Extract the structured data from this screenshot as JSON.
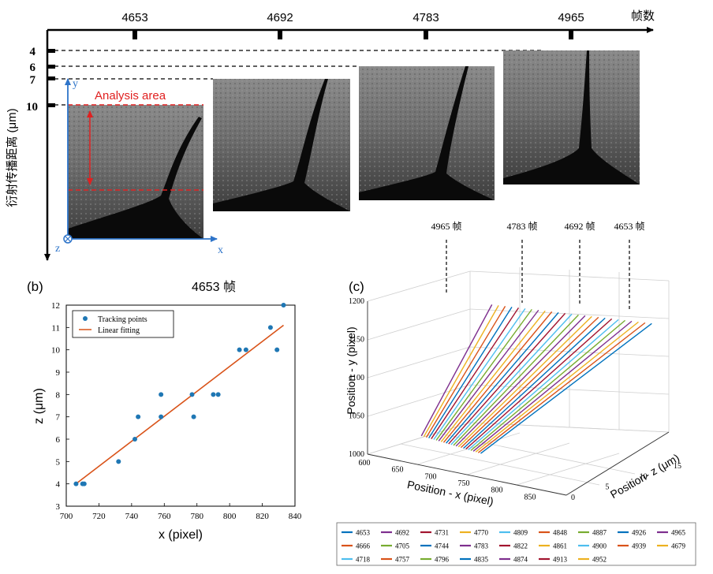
{
  "panel_a": {
    "frame_axis_label": "帧数",
    "distance_axis_label": "衍射传播距离 (μm)",
    "frames": [
      "4653",
      "4692",
      "4783",
      "4965"
    ],
    "distance_marks": [
      "4",
      "6",
      "7",
      "10"
    ],
    "analysis_area_label": "Analysis area",
    "coord_x": "x",
    "coord_y": "y",
    "coord_z": "z"
  },
  "panel_b": {
    "panel_label": "(b)",
    "title": "4653 帧",
    "legend": {
      "points": "Tracking points",
      "fit": "Linear fitting"
    },
    "colors": {
      "points": "#1f77b4",
      "fit": "#d95319"
    }
  },
  "panel_c": {
    "panel_label": "(c)",
    "frame_callouts": [
      "4965 帧",
      "4783 帧",
      "4692 帧",
      "4653 帧"
    ],
    "legend_frames": [
      "4653",
      "4692",
      "4731",
      "4770",
      "4809",
      "4848",
      "4887",
      "4926",
      "4965",
      "4666",
      "4705",
      "4744",
      "4783",
      "4822",
      "4861",
      "4900",
      "4939",
      "4679",
      "4718",
      "4757",
      "4796",
      "4835",
      "4874",
      "4913",
      "4952"
    ],
    "legend_colors": [
      "#0072bd",
      "#7e2f8e",
      "#a2142f",
      "#edb120",
      "#4dbeee",
      "#d95319",
      "#77ac30",
      "#0072bd",
      "#7e2f8e",
      "#d95319",
      "#77ac30",
      "#0072bd",
      "#7e2f8e",
      "#a2142f",
      "#edb120",
      "#4dbeee",
      "#d95319",
      "#edb120",
      "#4dbeee",
      "#d95319",
      "#77ac30",
      "#0072bd",
      "#7e2f8e",
      "#a2142f",
      "#edb120"
    ]
  },
  "chart_data": [
    {
      "type": "scatter",
      "title": "4653 帧",
      "xlabel": "x (pixel)",
      "ylabel": "z (μm)",
      "xlim": [
        700,
        840
      ],
      "ylim": [
        3,
        12
      ],
      "xticks": [
        700,
        720,
        740,
        760,
        780,
        800,
        820,
        840
      ],
      "yticks": [
        3,
        4,
        5,
        6,
        7,
        8,
        9,
        10,
        11,
        12
      ],
      "series": [
        {
          "name": "Tracking points",
          "points": [
            [
              706,
              4
            ],
            [
              710,
              4
            ],
            [
              711,
              4
            ],
            [
              732,
              5
            ],
            [
              742,
              6
            ],
            [
              744,
              7
            ],
            [
              758,
              7
            ],
            [
              758,
              8
            ],
            [
              777,
              8
            ],
            [
              778,
              7
            ],
            [
              790,
              8
            ],
            [
              793,
              8
            ],
            [
              806,
              10
            ],
            [
              810,
              10
            ],
            [
              825,
              11
            ],
            [
              829,
              10
            ],
            [
              833,
              12
            ]
          ]
        },
        {
          "name": "Linear fitting",
          "points": [
            [
              705,
              3.95
            ],
            [
              833,
              11.1
            ]
          ]
        }
      ]
    },
    {
      "type": "line",
      "xlabel": "Position - x (pixel)",
      "ylabel": "Position - y (pixel)",
      "zlabel": "Position- z (μm)",
      "xticks": [
        600,
        650,
        700,
        750,
        800,
        850
      ],
      "yticks": [
        1000,
        1050,
        1100,
        1150,
        1200
      ],
      "zticks": [
        0,
        5,
        10,
        15
      ],
      "series_names": [
        "4653",
        "4692",
        "4731",
        "4770",
        "4809",
        "4848",
        "4887",
        "4926",
        "4965",
        "4666",
        "4705",
        "4744",
        "4783",
        "4822",
        "4861",
        "4900",
        "4939",
        "4679",
        "4718",
        "4757",
        "4796",
        "4835",
        "4874",
        "4913",
        "4952"
      ]
    }
  ]
}
